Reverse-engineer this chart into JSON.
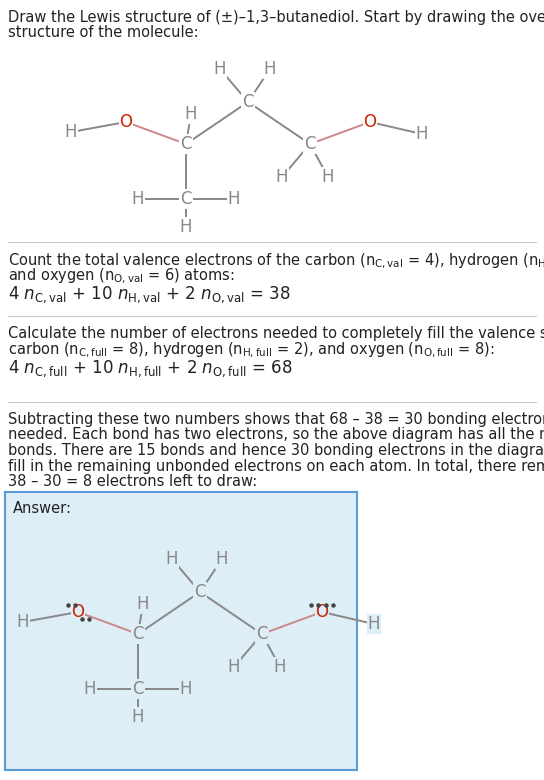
{
  "bg_color": "#ffffff",
  "answer_bg_color": "#deeef7",
  "answer_border_color": "#5b9bd5",
  "text_color": "#222222",
  "atom_C_color": "#888888",
  "atom_O_color": "#cc2200",
  "atom_H_color": "#888888",
  "bond_CO_color": "#cc8888",
  "bond_CC_color": "#888888",
  "bond_CH_color": "#888888",
  "sep_color": "#cccccc",
  "font_size_body": 10.5,
  "font_size_formula": 12,
  "font_size_atom": 12
}
